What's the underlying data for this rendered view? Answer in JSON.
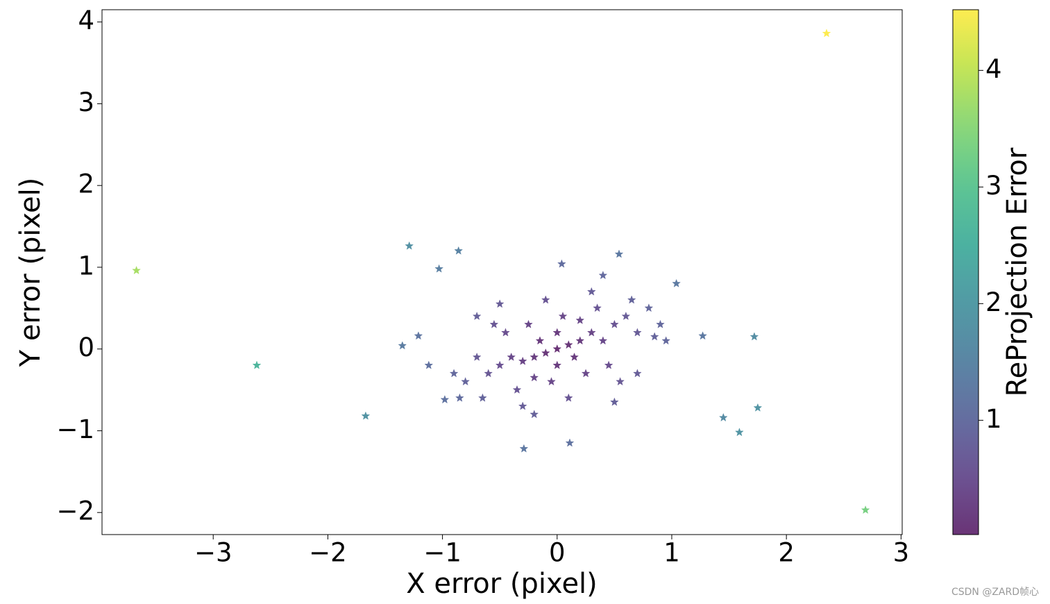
{
  "chart_data": {
    "type": "scatter",
    "x_label": "X error (pixel)",
    "y_label": "Y error (pixel)",
    "colorbar_label": "ReProjection Error",
    "colormap": "viridis",
    "alpha": 0.8,
    "watermark": "CSDN @ZARD帧心",
    "xlim": [
      -3.97,
      3.01
    ],
    "ylim": [
      -2.27,
      4.15
    ],
    "clim": [
      0.02,
      4.52
    ],
    "xticks": [
      {
        "value": -3,
        "label": "−3"
      },
      {
        "value": -2,
        "label": "−2"
      },
      {
        "value": -1,
        "label": "−1"
      },
      0,
      1,
      2,
      3
    ],
    "yticks": [
      {
        "value": -2,
        "label": "−2"
      },
      {
        "value": -1,
        "label": "−1"
      },
      0,
      1,
      2,
      3,
      4
    ],
    "cticks": [
      1,
      2,
      3,
      4
    ],
    "x": [
      -3.67,
      -2.62,
      -1.67,
      -1.29,
      -0.86,
      2.35,
      2.69,
      1.72,
      1.75,
      1.59,
      1.45,
      1.27,
      1.04,
      0.54,
      -0.29,
      0.11,
      -1.35,
      -1.21,
      -1.03,
      -1.12,
      -0.98,
      0.04,
      0,
      0.1,
      -0.1,
      0.2,
      -0.2,
      0.3,
      -0.3,
      0.15,
      -0.15,
      0.4,
      -0.4,
      0.5,
      -0.5,
      0.6,
      -0.6,
      0.25,
      -0.25,
      0.05,
      -0.05,
      0.7,
      -0.7,
      0.35,
      -0.35,
      0.8,
      -0.8,
      0.45,
      -0.45,
      0.1,
      -0.1,
      0.65,
      -0.65,
      0.9,
      -0.9,
      0.3,
      -0.3,
      0.55,
      -0.55,
      -0.7,
      0.7,
      0.2,
      -0.2,
      0.0,
      0.0,
      0.85,
      -0.85,
      0.4,
      -0.5,
      0.5,
      -0.2,
      0.95
    ],
    "y": [
      0.96,
      -0.2,
      -0.82,
      1.26,
      1.2,
      3.86,
      -1.97,
      0.15,
      -0.72,
      -1.02,
      -0.84,
      0.16,
      0.8,
      1.16,
      -1.22,
      -1.15,
      0.04,
      0.16,
      0.98,
      -0.2,
      -0.62,
      1.04,
      0,
      0.05,
      -0.05,
      0.1,
      -0.1,
      0.2,
      -0.15,
      -0.1,
      0.1,
      0.1,
      -0.1,
      0.3,
      -0.2,
      0.4,
      -0.3,
      -0.3,
      0.3,
      0.4,
      -0.4,
      0.2,
      -0.1,
      0.5,
      -0.5,
      0.5,
      -0.4,
      -0.2,
      0.2,
      -0.6,
      0.6,
      0.6,
      -0.6,
      0.3,
      -0.3,
      0.7,
      -0.7,
      -0.4,
      0.3,
      0.4,
      -0.3,
      0.35,
      -0.35,
      0.2,
      -0.2,
      0.15,
      -0.6,
      0.9,
      0.55,
      -0.65,
      -0.8,
      0.1
    ],
    "c": [
      3.79,
      2.63,
      1.86,
      1.8,
      1.48,
      4.52,
      3.33,
      1.73,
      1.89,
      1.89,
      1.68,
      1.28,
      1.31,
      1.28,
      1.25,
      1.16,
      1.35,
      1.22,
      1.42,
      1.14,
      1.16,
      1.04,
      0.02,
      0.11,
      0.11,
      0.22,
      0.22,
      0.36,
      0.34,
      0.18,
      0.18,
      0.41,
      0.41,
      0.58,
      0.54,
      0.72,
      0.67,
      0.39,
      0.39,
      0.4,
      0.4,
      0.73,
      0.71,
      0.61,
      0.61,
      0.94,
      0.89,
      0.49,
      0.49,
      0.61,
      0.61,
      0.88,
      0.88,
      0.95,
      0.95,
      0.76,
      0.76,
      0.68,
      0.63,
      0.81,
      0.76,
      0.4,
      0.4,
      0.2,
      0.2,
      0.86,
      1.04,
      0.98,
      0.74,
      0.82,
      0.82,
      0.96
    ]
  }
}
